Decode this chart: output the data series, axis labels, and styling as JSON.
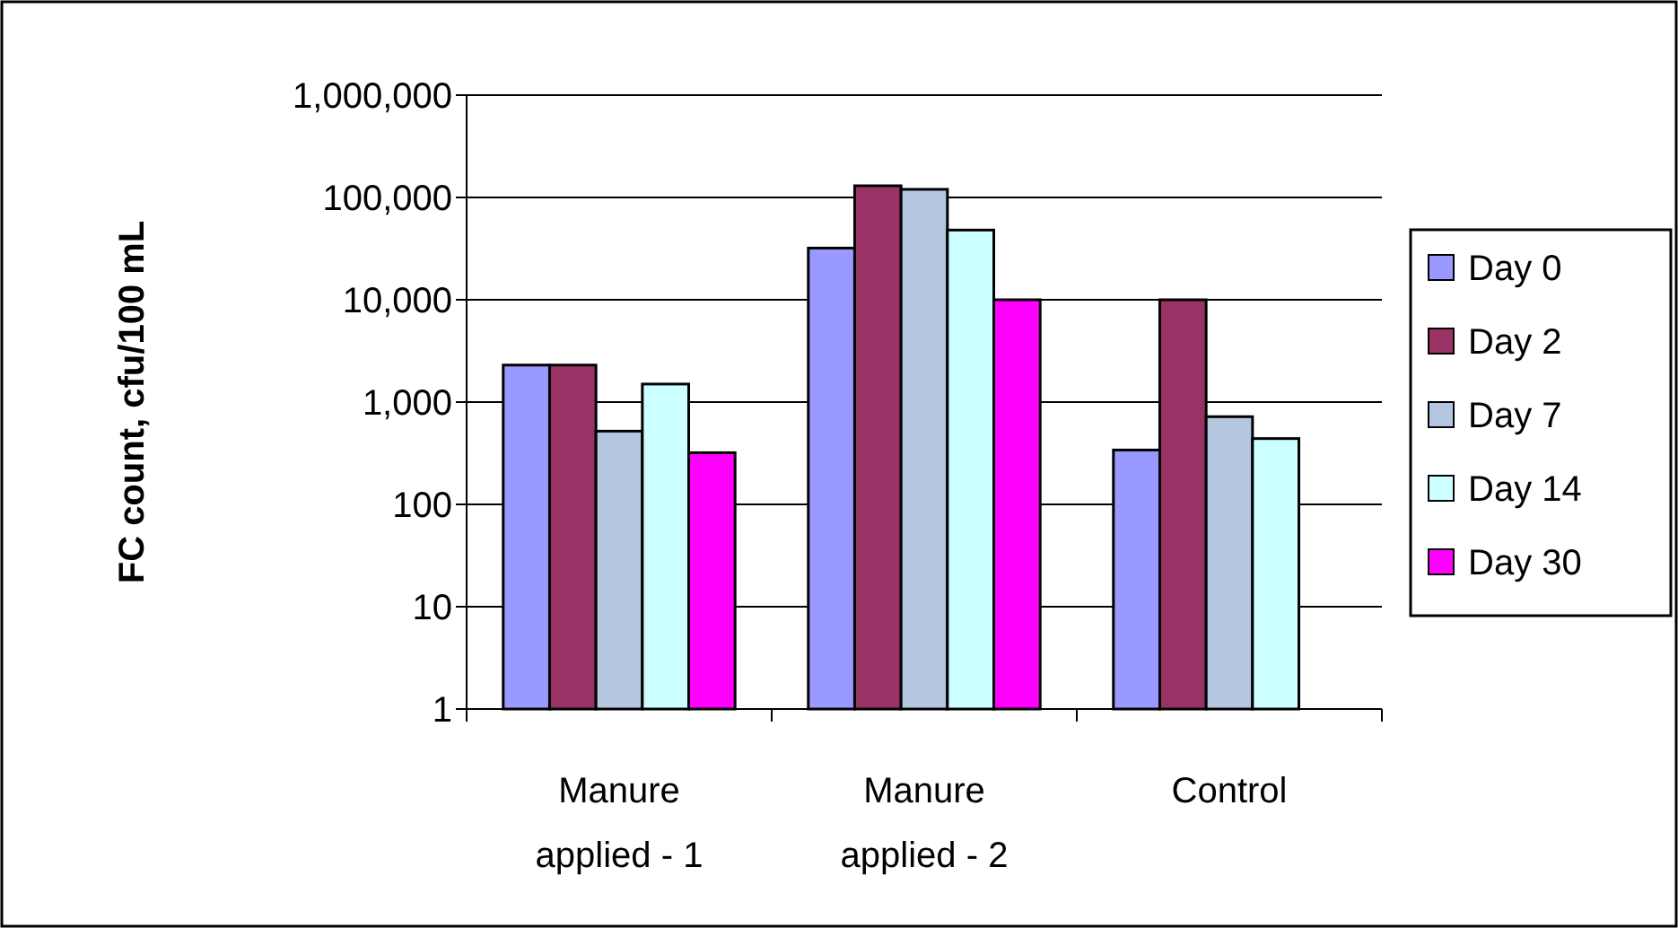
{
  "chart_data": {
    "type": "bar",
    "ylabel": "FC count, cfu/100 mL",
    "categories": [
      "Manure applied - 1",
      "Manure applied - 2",
      "Control"
    ],
    "series": [
      {
        "name": "Day 0",
        "color": "#9999ff",
        "values": [
          2300,
          32000,
          340
        ]
      },
      {
        "name": "Day 2",
        "color": "#993366",
        "values": [
          2300,
          130000,
          10000
        ]
      },
      {
        "name": "Day 7",
        "color": "#b4c6e0",
        "values": [
          520,
          120000,
          720
        ]
      },
      {
        "name": "Day 14",
        "color": "#ccffff",
        "values": [
          1500,
          48000,
          440
        ]
      },
      {
        "name": "Day 30",
        "color": "#ff00ff",
        "values": [
          320,
          10000,
          null
        ]
      }
    ],
    "log": true,
    "ylim": [
      1,
      1000000
    ],
    "yticks": [
      {
        "value": 1,
        "label": "1"
      },
      {
        "value": 10,
        "label": "10"
      },
      {
        "value": 100,
        "label": "100"
      },
      {
        "value": 1000,
        "label": "1,000"
      },
      {
        "value": 10000,
        "label": "10,000"
      },
      {
        "value": 100000,
        "label": "100,000"
      },
      {
        "value": 1000000,
        "label": "1,000,000"
      }
    ],
    "grid": "y",
    "legend": "right"
  }
}
